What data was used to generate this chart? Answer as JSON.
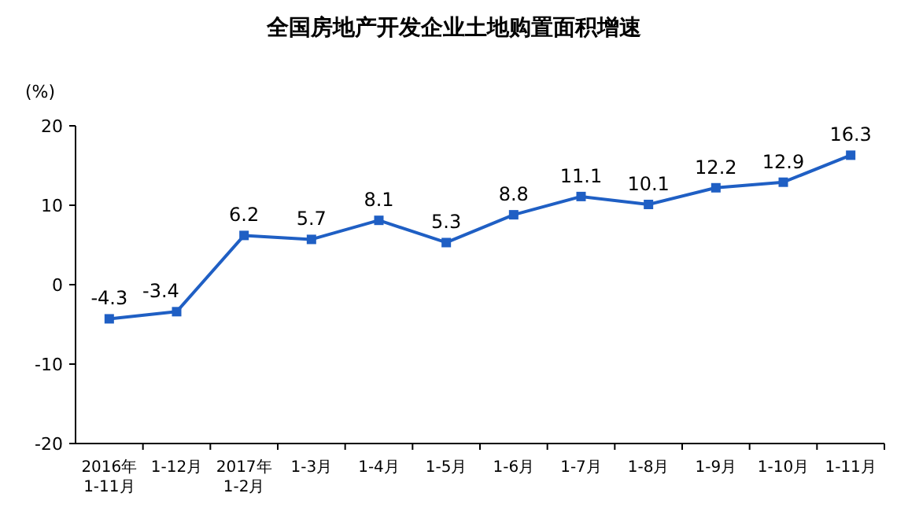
{
  "chart_data": {
    "type": "line",
    "title": "全国房地产开发企业土地购置面积增速",
    "ylabel": "(%)",
    "categories": [
      "2016年\n1-11月",
      "1-12月",
      "2017年\n1-2月",
      "1-3月",
      "1-4月",
      "1-5月",
      "1-6月",
      "1-7月",
      "1-8月",
      "1-9月",
      "1-10月",
      "1-11月"
    ],
    "series": [
      {
        "color": "#1f5fc4",
        "values": [
          -4.3,
          -3.4,
          6.2,
          5.7,
          8.1,
          5.3,
          8.8,
          11.1,
          10.1,
          12.2,
          12.9,
          16.3
        ]
      }
    ],
    "ylim": [
      -20,
      20
    ],
    "yticks": [
      -20,
      -10,
      0,
      10,
      20
    ],
    "marker": "square",
    "line_style": "solid",
    "data_labels": true,
    "grid": false
  }
}
